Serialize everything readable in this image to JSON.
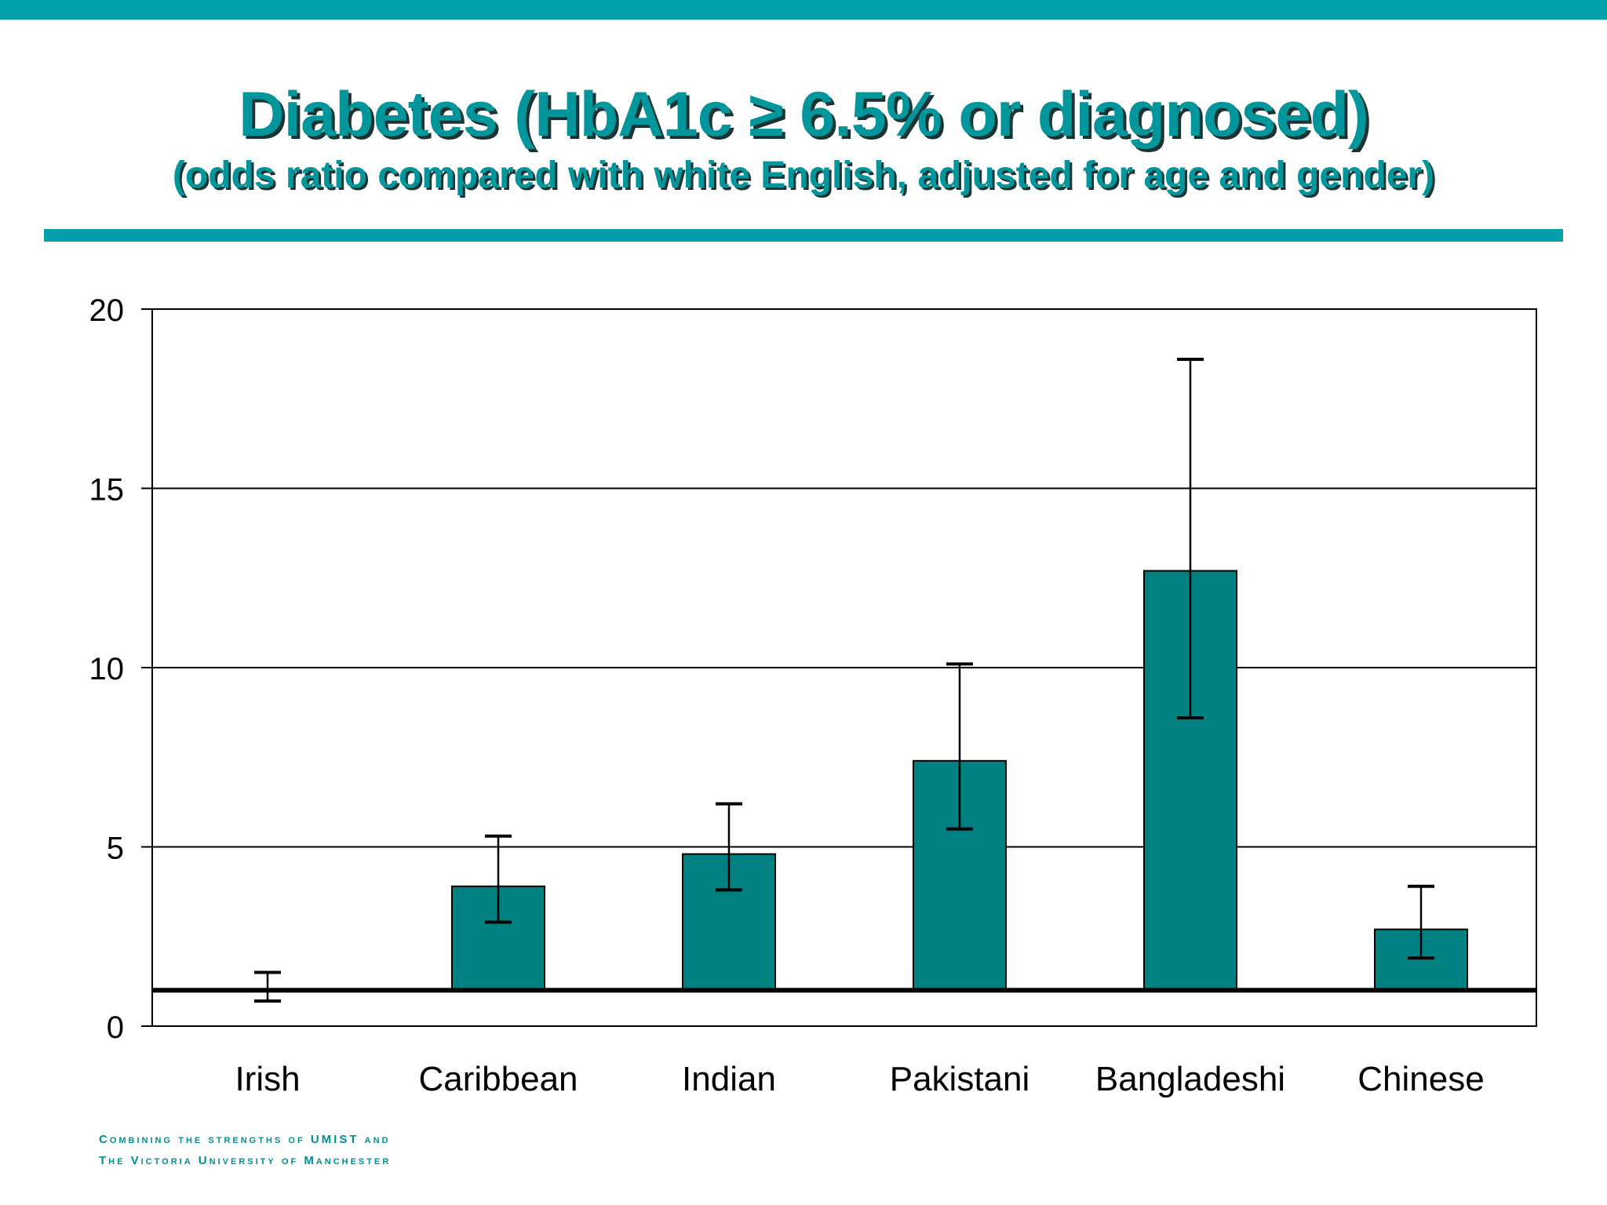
{
  "slide": {
    "title": "Diabetes (HbA1c ≥ 6.5% or diagnosed)",
    "subtitle": "(odds ratio compared with white English, adjusted for age and gender)",
    "footer_line1": "Combining the strengths of UMIST and",
    "footer_line2": "The Victoria University of Manchester",
    "accent_color": "#00A0A8",
    "bar_color": "#008080"
  },
  "chart_data": {
    "type": "bar",
    "categories": [
      "Irish",
      "Caribbean",
      "Indian",
      "Pakistani",
      "Bangladeshi",
      "Chinese"
    ],
    "values": [
      1.0,
      3.9,
      4.8,
      7.4,
      12.7,
      2.7
    ],
    "error_low": [
      0.7,
      2.9,
      3.8,
      5.5,
      8.6,
      1.9
    ],
    "error_high": [
      1.5,
      5.3,
      6.2,
      10.1,
      18.6,
      3.9
    ],
    "reference_line": 1,
    "ylim": [
      0,
      20
    ],
    "yticks": [
      0,
      5,
      10,
      15,
      20
    ],
    "grid": true,
    "xlabel": "",
    "ylabel": ""
  }
}
